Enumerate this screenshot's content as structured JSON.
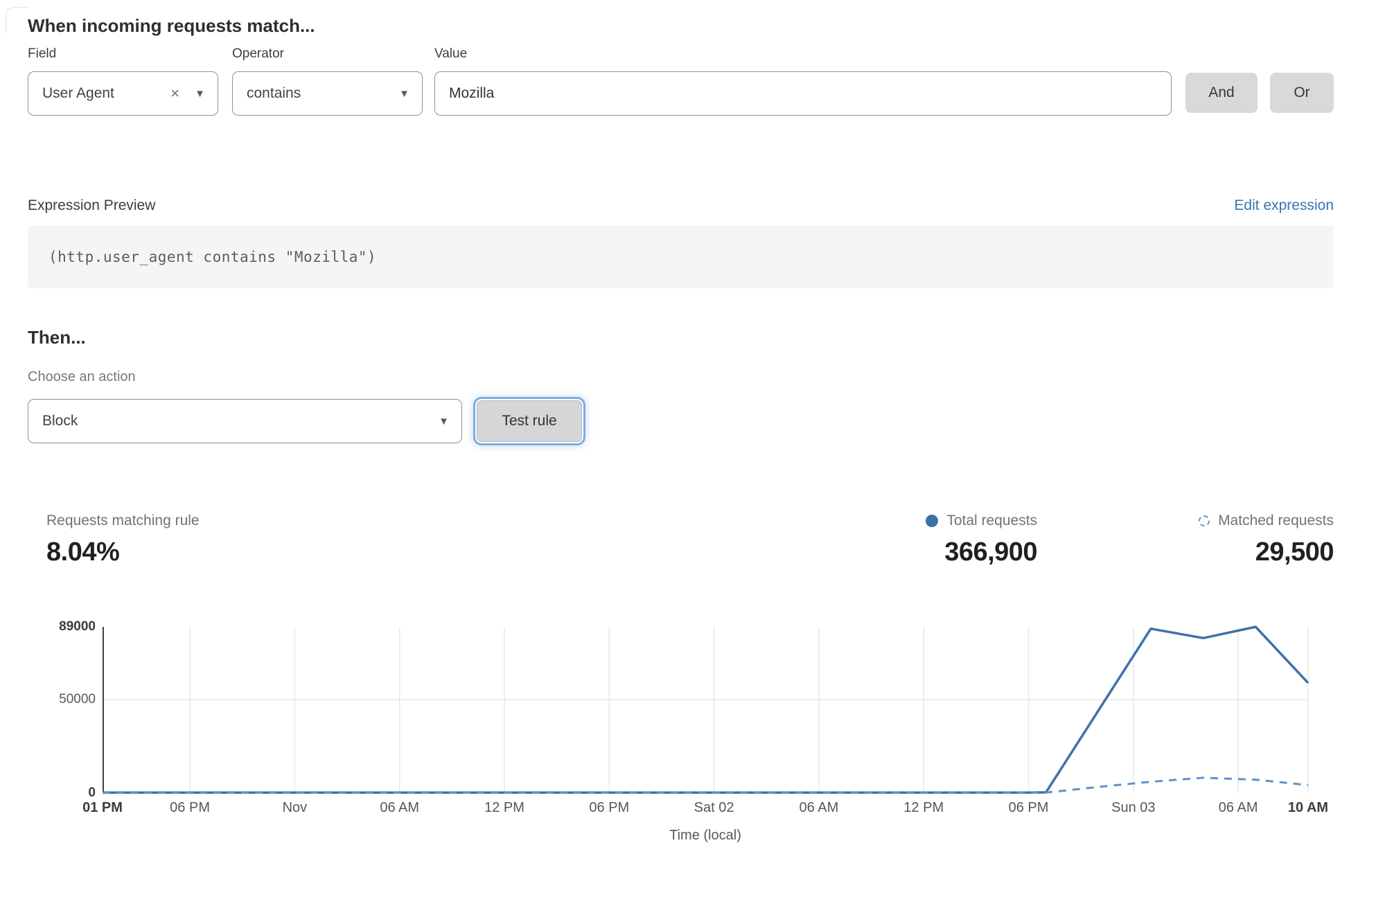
{
  "icons": {
    "clear": "×",
    "caret": "▼"
  },
  "colors": {
    "link_blue": "#3674b0",
    "focus_ring": "#7dade1",
    "button_gray": "#d9d9d9",
    "line_solid": "#3d72a9",
    "line_dashed": "#5d94c8",
    "gridline": "#e8e8e8",
    "axis": "#3e4144"
  },
  "header": {
    "title": "When incoming requests match..."
  },
  "rule_builder": {
    "field": {
      "label": "Field",
      "value": "User Agent"
    },
    "operator": {
      "label": "Operator",
      "value": "contains"
    },
    "value": {
      "label": "Value",
      "value": "Mozilla"
    },
    "and_label": "And",
    "or_label": "Or"
  },
  "expression": {
    "label": "Expression Preview",
    "edit_link": "Edit expression",
    "code": "(http.user_agent contains \"Mozilla\")"
  },
  "then": {
    "title": "Then...",
    "action_label": "Choose an action",
    "action_value": "Block",
    "test_button": "Test rule"
  },
  "stats": {
    "matching": {
      "label": "Requests matching rule",
      "value": "8.04%"
    },
    "total": {
      "label": "Total requests",
      "value": "366,900"
    },
    "matched": {
      "label": "Matched requests",
      "value": "29,500"
    }
  },
  "chart_data": {
    "type": "line",
    "xlabel": "Time (local)",
    "ylabel": "",
    "ylim": [
      0,
      89000
    ],
    "x_span_hours": 69,
    "grid": "light vertical line at each x tick, horizontal at 50000",
    "legend_position": "above chart, right aligned",
    "yticks": [
      {
        "v": 89000,
        "label": "89000",
        "bold": true
      },
      {
        "v": 50000,
        "label": "50000",
        "bold": false
      },
      {
        "v": 0,
        "label": "0",
        "bold": true
      }
    ],
    "xticks": [
      {
        "h": 0,
        "label": "01 PM",
        "bold": true
      },
      {
        "h": 5,
        "label": "06 PM",
        "bold": false
      },
      {
        "h": 11,
        "label": "Nov",
        "bold": false
      },
      {
        "h": 17,
        "label": "06 AM",
        "bold": false
      },
      {
        "h": 23,
        "label": "12 PM",
        "bold": false
      },
      {
        "h": 29,
        "label": "06 PM",
        "bold": false
      },
      {
        "h": 35,
        "label": "Sat 02",
        "bold": false
      },
      {
        "h": 41,
        "label": "06 AM",
        "bold": false
      },
      {
        "h": 47,
        "label": "12 PM",
        "bold": false
      },
      {
        "h": 53,
        "label": "06 PM",
        "bold": false
      },
      {
        "h": 59,
        "label": "Sun 03",
        "bold": false
      },
      {
        "h": 65,
        "label": "06 AM",
        "bold": false
      },
      {
        "h": 69,
        "label": "10 AM",
        "bold": true
      }
    ],
    "series": [
      {
        "name": "Total requests",
        "style": "solid",
        "color": "#3d72a9",
        "points": [
          [
            0,
            300
          ],
          [
            53,
            300
          ],
          [
            54,
            400
          ],
          [
            60,
            88000
          ],
          [
            63,
            83000
          ],
          [
            66,
            89000
          ],
          [
            69,
            59000
          ]
        ]
      },
      {
        "name": "Matched requests",
        "style": "dashed",
        "color": "#5d94c8",
        "points": [
          [
            0,
            150
          ],
          [
            54,
            250
          ],
          [
            57,
            3300
          ],
          [
            60,
            6100
          ],
          [
            63,
            8200
          ],
          [
            66,
            7200
          ],
          [
            69,
            4300
          ]
        ]
      }
    ]
  }
}
